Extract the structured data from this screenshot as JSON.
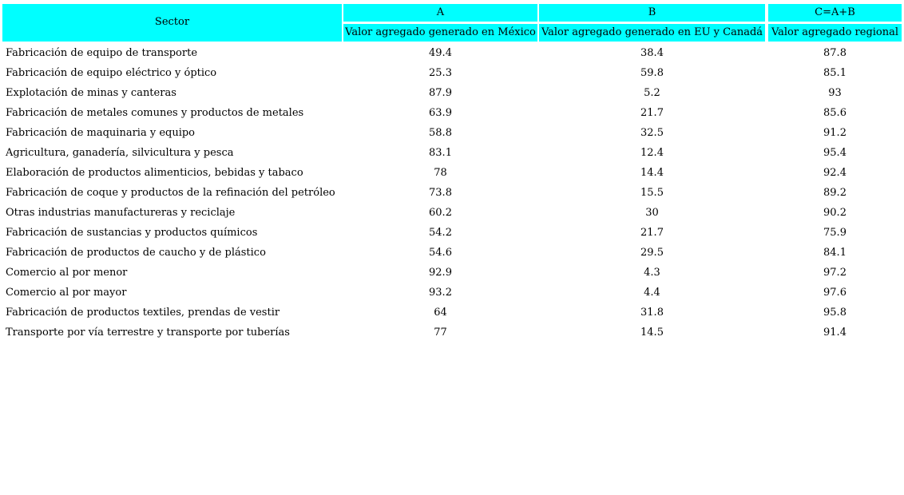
{
  "header": {
    "sector": "Sector",
    "columns": [
      {
        "letter": "A",
        "label": "Valor agregado generado en México"
      },
      {
        "letter": "B",
        "label": "Valor agregado generado en EU y Canadá"
      },
      {
        "letter": "C=A+B",
        "label": "Valor agregado regional"
      }
    ]
  },
  "table": {
    "rows": [
      [
        "Fabricación de equipo de transporte",
        49.4,
        38.4,
        87.8
      ],
      [
        "Fabricación de equipo eléctrico y óptico",
        25.3,
        59.8,
        85.1
      ],
      [
        "Explotación de minas y canteras",
        87.9,
        5.2,
        93
      ],
      [
        "Fabricación de metales comunes y productos de metales",
        63.9,
        21.7,
        85.6
      ],
      [
        "Fabricación de maquinaria y equipo",
        58.8,
        32.5,
        91.2
      ],
      [
        "Agricultura, ganadería, silvicultura y pesca",
        83.1,
        12.4,
        95.4
      ],
      [
        "Elaboración de productos alimenticios, bebidas y tabaco",
        78,
        14.4,
        92.4
      ],
      [
        "Fabricación de coque y productos de la refinación del petróleo",
        73.8,
        15.5,
        89.2
      ],
      [
        "Otras industrias manufactureras y reciclaje",
        60.2,
        30,
        90.2
      ],
      [
        "Fabricación de sustancias y productos químicos",
        54.2,
        21.7,
        75.9
      ],
      [
        "Fabricación de productos de caucho y de plástico",
        54.6,
        29.5,
        84.1
      ],
      [
        "Comercio al por menor",
        92.9,
        4.3,
        97.2
      ],
      [
        "Comercio al por mayor",
        93.2,
        4.4,
        97.6
      ],
      [
        "Fabricación de productos textiles, prendas de vestir",
        64,
        31.8,
        95.8
      ],
      [
        "Transporte por vía terrestre y transporte por tuberías",
        77,
        14.5,
        91.4
      ]
    ]
  }
}
